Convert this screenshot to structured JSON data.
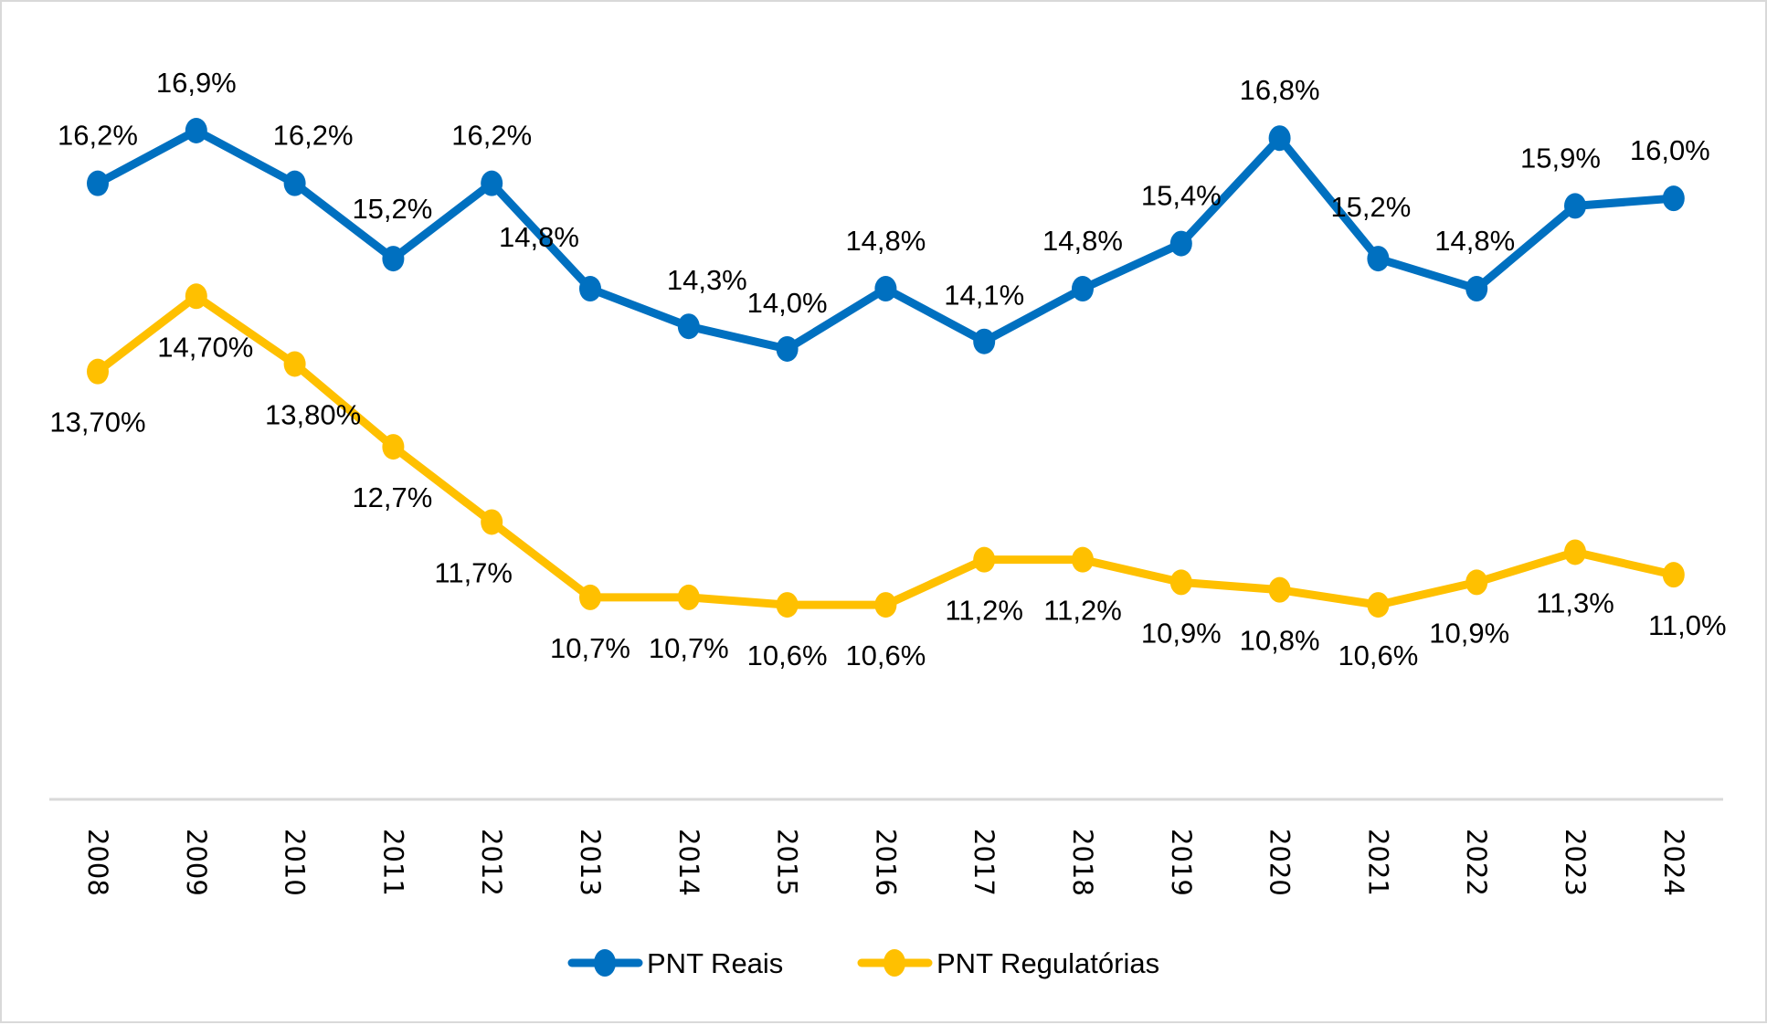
{
  "chart_data": {
    "type": "line",
    "title": "",
    "xlabel": "",
    "ylabel": "",
    "categories": [
      "2008",
      "2009",
      "2010",
      "2011",
      "2012",
      "2013",
      "2014",
      "2015",
      "2016",
      "2017",
      "2018",
      "2019",
      "2020",
      "2021",
      "2022",
      "2023",
      "2024"
    ],
    "ylim": [
      8.0,
      18.2
    ],
    "grid": false,
    "y_axis_visible": false,
    "x_tick_rotation": "vertical",
    "legend_position": "bottom",
    "series": [
      {
        "name": "PNT Reais",
        "color": "#0070C0",
        "marker": "circle",
        "values": [
          16.2,
          16.9,
          16.2,
          15.2,
          16.2,
          14.8,
          14.3,
          14.0,
          14.8,
          14.1,
          14.8,
          15.4,
          16.8,
          15.2,
          14.8,
          15.9,
          16.0
        ],
        "labels": [
          "16,2%",
          "16,9%",
          "16,2%",
          "15,2%",
          "16,2%",
          "14,8%",
          "14,3%",
          "14,0%",
          "14,8%",
          "14,1%",
          "14,8%",
          "15,4%",
          "16,8%",
          "15,2%",
          "14,8%",
          "15,9%",
          "16,0%"
        ]
      },
      {
        "name": "PNT Regulatórias",
        "color": "#FFC000",
        "marker": "circle",
        "values": [
          13.7,
          14.7,
          13.8,
          12.7,
          11.7,
          10.7,
          10.7,
          10.6,
          10.6,
          11.2,
          11.2,
          10.9,
          10.8,
          10.6,
          10.9,
          11.3,
          11.0
        ],
        "labels": [
          "13,70%",
          "14,70%",
          "13,80%",
          "12,7%",
          "11,7%",
          "10,7%",
          "10,7%",
          "10,6%",
          "10,6%",
          "11,2%",
          "11,2%",
          "10,9%",
          "10,8%",
          "10,6%",
          "10,9%",
          "11,3%",
          "11,0%"
        ]
      }
    ],
    "axis_color": "#D9D9D9"
  }
}
